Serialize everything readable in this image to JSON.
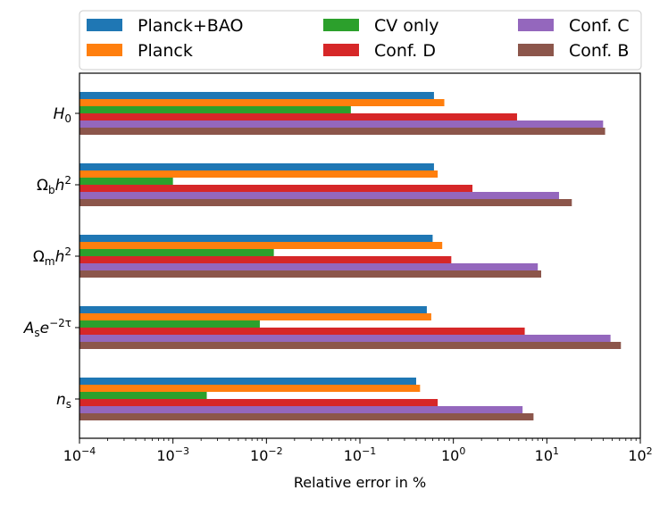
{
  "chart_data": {
    "type": "bar",
    "orientation": "horizontal",
    "x_scale": "log",
    "xlim": [
      0.0001,
      100
    ],
    "xlabel": "Relative error in %",
    "ylabel": "",
    "grid": false,
    "legend_placement": "top, above plot, 3 columns",
    "categories": [
      "H_0",
      "Ω_b h^2",
      "Ω_m h^2",
      "A_s e^{-2τ}",
      "n_s"
    ],
    "x_ticks": [
      {
        "base": "10",
        "exp": "−4",
        "value": 0.0001
      },
      {
        "base": "10",
        "exp": "−3",
        "value": 0.001
      },
      {
        "base": "10",
        "exp": "−2",
        "value": 0.01
      },
      {
        "base": "10",
        "exp": "−1",
        "value": 0.1
      },
      {
        "base": "10",
        "exp": "0",
        "value": 1
      },
      {
        "base": "10",
        "exp": "1",
        "value": 10
      },
      {
        "base": "10",
        "exp": "2",
        "value": 100
      }
    ],
    "series": [
      {
        "name": "Planck+BAO",
        "color": "#1f77b4",
        "values": [
          0.62,
          0.62,
          0.6,
          0.52,
          0.4
        ]
      },
      {
        "name": "Planck",
        "color": "#ff7f0e",
        "values": [
          0.8,
          0.68,
          0.76,
          0.58,
          0.44
        ]
      },
      {
        "name": "CV only",
        "color": "#2ca02c",
        "values": [
          0.08,
          0.001,
          0.012,
          0.0085,
          0.0023
        ]
      },
      {
        "name": "Conf. D",
        "color": "#d62728",
        "values": [
          4.8,
          1.6,
          0.95,
          5.8,
          0.68
        ]
      },
      {
        "name": "Conf. C",
        "color": "#9467bd",
        "values": [
          40,
          13.5,
          8,
          48,
          5.5
        ]
      },
      {
        "name": "Conf. B",
        "color": "#8c564b",
        "values": [
          42,
          18.5,
          8.7,
          62,
          7.2
        ]
      }
    ],
    "legend_order": [
      "Planck+BAO",
      "CV only",
      "Conf. C",
      "Planck",
      "Conf. D",
      "Conf. B"
    ]
  }
}
